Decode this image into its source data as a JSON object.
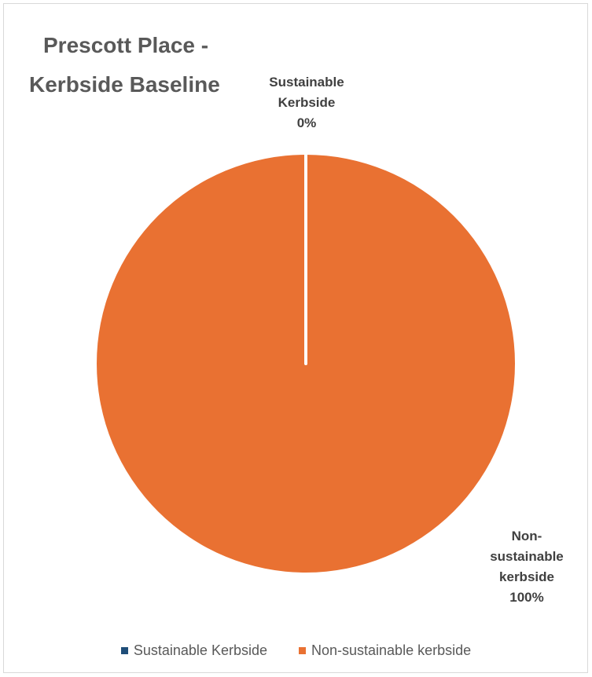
{
  "chart_data": {
    "type": "pie",
    "title_lines": [
      "Prescott Place -",
      "Kerbside Baseline"
    ],
    "categories": [
      "Sustainable Kerbside",
      "Non-sustainable kerbside"
    ],
    "values": [
      0,
      100
    ],
    "unit": "%",
    "colors": [
      "#1f4e79",
      "#e97132"
    ],
    "data_labels": [
      [
        "Sustainable",
        "Kerbside",
        "0%"
      ],
      [
        "Non-",
        "sustainable",
        "kerbside",
        "100%"
      ]
    ],
    "legend": {
      "position": "bottom",
      "entries": [
        "Sustainable Kerbside",
        "Non-sustainable kerbside"
      ]
    }
  }
}
